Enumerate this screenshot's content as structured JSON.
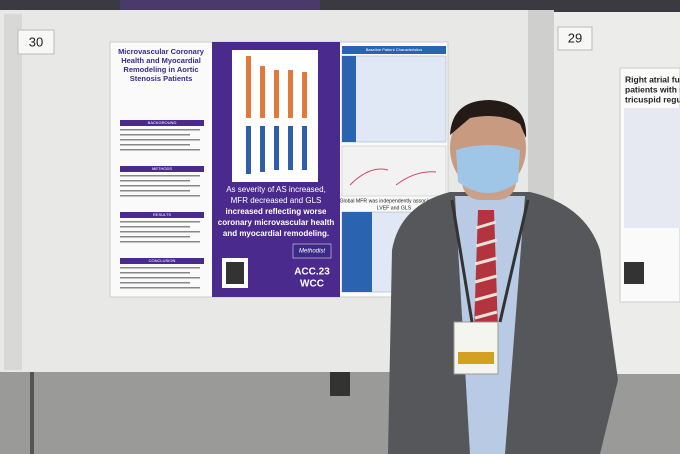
{
  "booths": [
    {
      "number": "30"
    },
    {
      "number": "29"
    }
  ],
  "poster_left": {
    "title_lines": [
      "Microvascular Coronary",
      "Health and Myocardial",
      "Remodeling in Aortic",
      "Stenosis Patients"
    ],
    "sections": [
      "BACKGROUND",
      "METHODS",
      "RESULTS",
      "CONCLUSION"
    ],
    "table_title": "Baseline Patient Characteristics",
    "key_message_lines": [
      "As severity of AS increased,",
      "MFR decreased and GLS",
      "increased reflecting worse",
      "coronary microvascular health",
      "and myocardial remodeling."
    ],
    "finding_lines": [
      "Global MFR was independently associated with",
      "LVEF and GLS"
    ],
    "brand": "Methodist",
    "logo_lines": [
      "ACC.23",
      "WCC"
    ]
  },
  "poster_right": {
    "title_lines": [
      "Right atrial func",
      "patients with sig",
      "tricuspid regurg"
    ]
  }
}
